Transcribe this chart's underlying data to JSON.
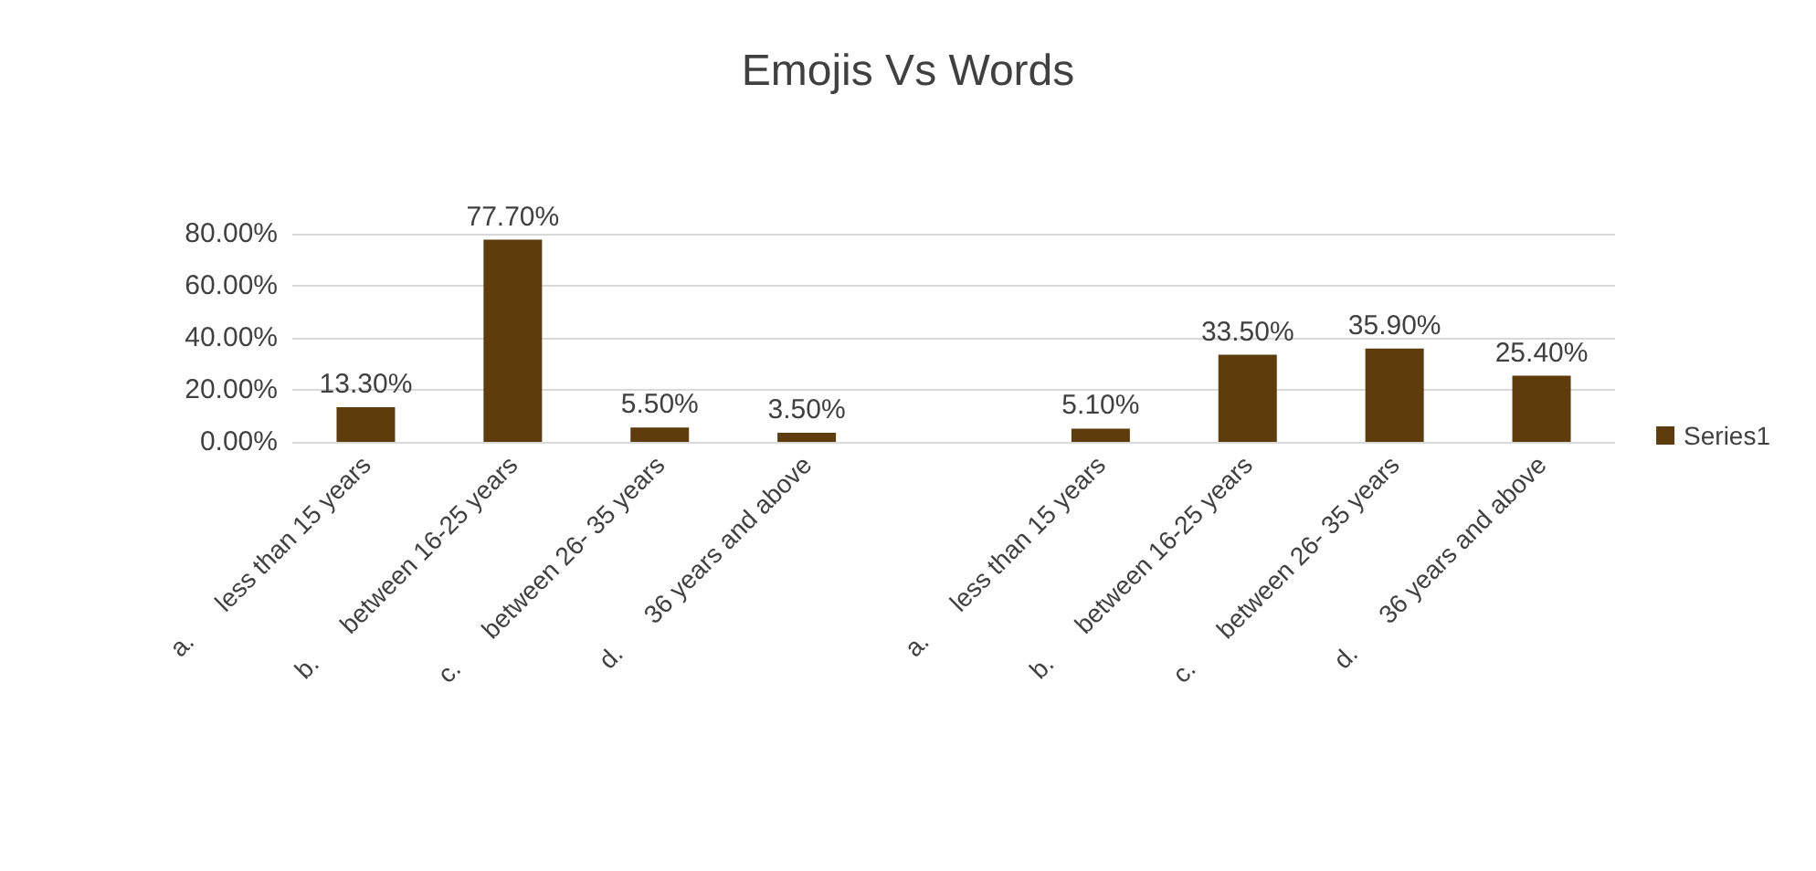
{
  "chart_data": {
    "type": "bar",
    "title": "Emojis Vs Words",
    "categories": [
      "a.      less than 15 years",
      "b.      between 16-25 years",
      "c.      between 26- 35 years",
      "d.      36 years and above",
      null,
      "a.      less than 15 years",
      "b.      between 16-25 years",
      "c.      between 26- 35 years",
      "d.      36 years and above"
    ],
    "series": [
      {
        "name": "Series1",
        "color": "#5e3c0c",
        "values": [
          13.3,
          77.7,
          5.5,
          3.5,
          null,
          5.1,
          33.5,
          35.9,
          25.4
        ],
        "value_labels": [
          "13.30%",
          "77.70%",
          "5.50%",
          "3.50%",
          null,
          "5.10%",
          "33.50%",
          "35.90%",
          "25.40%"
        ]
      }
    ],
    "ylim": [
      0,
      80
    ],
    "yticks": [
      {
        "value": 0,
        "label": "0.00%"
      },
      {
        "value": 20,
        "label": "20.00%"
      },
      {
        "value": 40,
        "label": "40.00%"
      },
      {
        "value": 60,
        "label": "60.00%"
      },
      {
        "value": 80,
        "label": "80.00%"
      }
    ],
    "grid": "y",
    "legend": "right"
  }
}
